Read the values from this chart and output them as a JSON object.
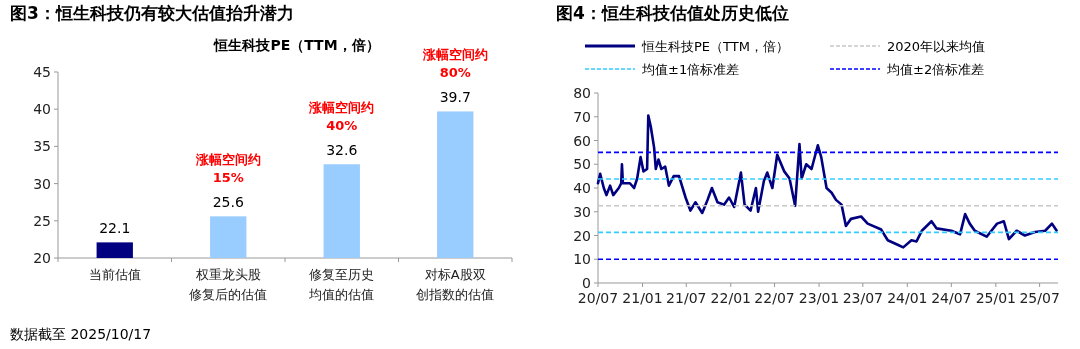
{
  "chart_data": [
    {
      "type": "bar",
      "title": "图3：恒生科技仍有较大估值抬升潜力",
      "subtitle": "恒生科技PE（TTM，倍）",
      "categories": [
        "当前估值",
        "权重龙头股修复后的估值",
        "修复至历史均值的估值",
        "对标A股双创指数的估值"
      ],
      "values": [
        22.1,
        25.6,
        32.6,
        39.7
      ],
      "colors": [
        "#000080",
        "#99ccff",
        "#99ccff",
        "#99ccff"
      ],
      "ylim": [
        20,
        45
      ],
      "yticks": [
        20,
        25,
        30,
        35,
        40,
        45
      ],
      "data_labels": true,
      "legend": false,
      "grid": false,
      "annotations": [
        {
          "text": "涨幅空间约\n15%",
          "x": "权重龙头股修复后的估值",
          "y": 25.6
        },
        {
          "text": "涨幅空间约\n40%",
          "x": "修复至历史均值的估值",
          "y": 32.6
        },
        {
          "text": "涨幅空间约\n80%",
          "x": "对标A股双创指数的估值",
          "y": 39.7
        },
        "数据截至 2025/10/17"
      ]
    },
    {
      "type": "line",
      "title": "图4：恒生科技估值处历史低位",
      "x": [
        "2020-07-01",
        "2020-07-10",
        "2020-07-25",
        "2020-08-05",
        "2020-08-20",
        "2020-09-02",
        "2020-09-25",
        "2020-10-05",
        "2020-10-08",
        "2020-10-12",
        "2020-11-10",
        "2020-11-27",
        "2020-12-10",
        "2020-12-24",
        "2021-01-05",
        "2021-01-20",
        "2021-01-25",
        "2021-02-04",
        "2021-02-18",
        "2021-02-25",
        "2021-03-08",
        "2021-03-20",
        "2021-04-05",
        "2021-04-20",
        "2021-05-10",
        "2021-06-01",
        "2021-06-28",
        "2021-07-18",
        "2021-08-08",
        "2021-09-05",
        "2021-09-27",
        "2021-10-15",
        "2021-11-07",
        "2021-12-04",
        "2021-12-25",
        "2022-01-15",
        "2022-02-12",
        "2022-02-27",
        "2022-03-24",
        "2022-04-15",
        "2022-04-24",
        "2022-05-18",
        "2022-06-01",
        "2022-06-22",
        "2022-07-12",
        "2022-08-10",
        "2022-09-01",
        "2022-09-24",
        "2022-10-12",
        "2022-10-21",
        "2022-11-09",
        "2022-12-01",
        "2022-12-27",
        "2023-01-10",
        "2023-02-01",
        "2023-02-22",
        "2023-03-12",
        "2023-04-04",
        "2023-04-22",
        "2023-05-13",
        "2023-06-24",
        "2023-07-21",
        "2023-09-15",
        "2023-10-12",
        "2023-11-24",
        "2023-12-15",
        "2024-01-18",
        "2024-02-08",
        "2024-03-01",
        "2024-04-10",
        "2024-05-01",
        "2024-07-01",
        "2024-08-06",
        "2024-08-27",
        "2024-09-15",
        "2024-10-06",
        "2024-11-24",
        "2025-01-06",
        "2025-02-03",
        "2025-02-24",
        "2025-03-28",
        "2025-05-01",
        "2025-06-12",
        "2025-07-24",
        "2025-08-21",
        "2025-09-09"
      ],
      "series": [
        {
          "name": "恒生科技PE（TTM，倍）",
          "color": "#000080",
          "values": [
            42,
            46,
            40,
            37,
            41,
            37,
            40,
            42,
            50,
            42,
            42,
            40,
            44,
            53,
            47,
            48,
            70.5,
            66,
            57,
            48,
            52,
            48,
            49,
            41,
            45,
            45,
            36,
            30.5,
            34,
            29.5,
            35,
            40,
            34,
            33,
            36,
            32,
            46.5,
            33,
            30.5,
            40,
            30,
            43,
            46.5,
            40,
            54,
            47,
            44,
            32.5,
            58.5,
            44,
            50,
            48,
            58,
            53,
            40,
            38,
            35,
            33,
            24,
            27,
            28,
            25,
            22.5,
            18,
            16,
            15,
            18,
            17.5,
            22,
            26,
            23,
            22,
            20.5,
            29,
            25,
            22,
            19.5,
            25,
            26,
            18.5,
            22,
            20,
            21.5,
            22,
            25,
            22.1
          ]
        }
      ],
      "xlim": [
        "2020-07-01",
        "2025-09-15"
      ],
      "xticks": [
        {
          "value": "2020-07-01",
          "label": "20/07"
        },
        {
          "value": "2021-01-01",
          "label": "21/01"
        },
        {
          "value": "2021-07-01",
          "label": "21/07"
        },
        {
          "value": "2022-01-01",
          "label": "22/01"
        },
        {
          "value": "2022-07-01",
          "label": "22/07"
        },
        {
          "value": "2023-01-01",
          "label": "23/01"
        },
        {
          "value": "2023-07-01",
          "label": "23/07"
        },
        {
          "value": "2024-01-01",
          "label": "24/01"
        },
        {
          "value": "2024-07-01",
          "label": "24/07"
        },
        {
          "value": "2025-01-01",
          "label": "25/01"
        },
        {
          "value": "2025-07-01",
          "label": "25/07"
        }
      ],
      "ylim": [
        0,
        80
      ],
      "yticks": [
        0,
        10,
        20,
        30,
        40,
        50,
        60,
        70,
        80
      ],
      "grid": false,
      "legend": "top",
      "ref_lines": [
        {
          "axis": "y",
          "value": 32.5,
          "label": "2020年以来均值",
          "color": "#c8c8c8",
          "line_style": "dashed"
        },
        {
          "axis": "y",
          "value": 43.8,
          "label": "均值±1倍标准差",
          "color": "#33ccff",
          "line_style": "dashed"
        },
        {
          "axis": "y",
          "value": 21.3,
          "color": "#33ccff",
          "line_style": "dashed"
        },
        {
          "axis": "y",
          "value": 55,
          "label": "均值±2倍标准差",
          "color": "#0000ff",
          "line_style": "dashed"
        },
        {
          "axis": "y",
          "value": 10,
          "color": "#0000ff",
          "line_style": "dashed"
        }
      ]
    }
  ]
}
